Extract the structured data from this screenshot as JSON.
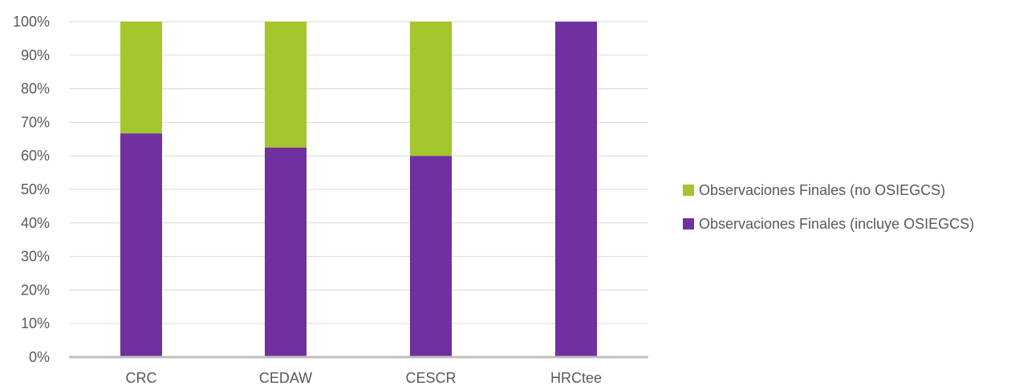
{
  "chart_data": {
    "type": "bar",
    "stacked": true,
    "percent": true,
    "categories": [
      "CRC",
      "CEDAW",
      "CESCR",
      "HRCtee"
    ],
    "series": [
      {
        "name": "Observaciones Finales (incluye OSIEGCS)",
        "values": [
          66.7,
          62.5,
          60,
          100
        ],
        "color": "#7030a0"
      },
      {
        "name": "Observaciones Finales (no OSIEGCS)",
        "values": [
          33.3,
          37.5,
          40,
          0
        ],
        "color": "#a2c62b"
      }
    ],
    "y_ticks": [
      "0%",
      "10%",
      "20%",
      "30%",
      "40%",
      "50%",
      "60%",
      "70%",
      "80%",
      "90%",
      "100%"
    ],
    "ylim": [
      0,
      100
    ],
    "grid": true,
    "legend_position": "right",
    "legend_order": [
      1,
      0
    ],
    "title": "",
    "xlabel": "",
    "ylabel": ""
  }
}
